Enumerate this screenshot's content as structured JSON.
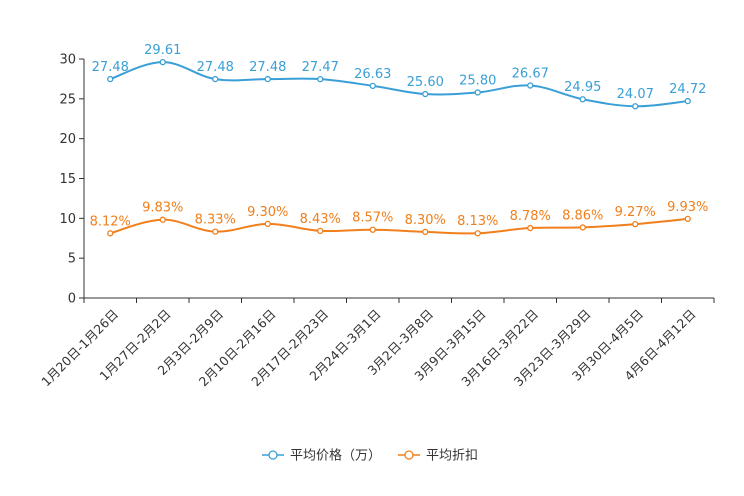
{
  "chart_data": {
    "type": "line",
    "categories": [
      "1月20日-1月26日",
      "1月27日-2月2日",
      "2月3日-2月9日",
      "2月10日-2月16日",
      "2月17日-2月23日",
      "2月24日-3月1日",
      "3月2日-3月8日",
      "3月9日-3月15日",
      "3月16日-3月22日",
      "3月23日-3月29日",
      "3月30日-4月5日",
      "4月6日-4月12日"
    ],
    "series": [
      {
        "name": "平均价格（万）",
        "color": "#3a9fd6",
        "values": [
          27.48,
          29.61,
          27.48,
          27.48,
          27.47,
          26.63,
          25.6,
          25.8,
          26.67,
          24.95,
          24.07,
          24.72
        ],
        "labels": [
          "27.48",
          "29.61",
          "27.48",
          "27.48",
          "27.47",
          "26.63",
          "25.60",
          "25.80",
          "26.67",
          "24.95",
          "24.07",
          "24.72"
        ]
      },
      {
        "name": "平均折扣",
        "color": "#f07f1c",
        "values": [
          8.12,
          9.83,
          8.33,
          9.3,
          8.43,
          8.57,
          8.3,
          8.13,
          8.78,
          8.86,
          9.27,
          9.93
        ],
        "labels": [
          "8.12%",
          "9.83%",
          "8.33%",
          "9.30%",
          "8.43%",
          "8.57%",
          "8.30%",
          "8.13%",
          "8.78%",
          "8.86%",
          "9.27%",
          "9.93%"
        ]
      }
    ],
    "yticks": [
      "0",
      "5",
      "10",
      "15",
      "20",
      "25",
      "30"
    ],
    "ylim": [
      0,
      30
    ],
    "xlabel": "",
    "ylabel": "",
    "title": "",
    "legend_position": "bottom-center"
  }
}
